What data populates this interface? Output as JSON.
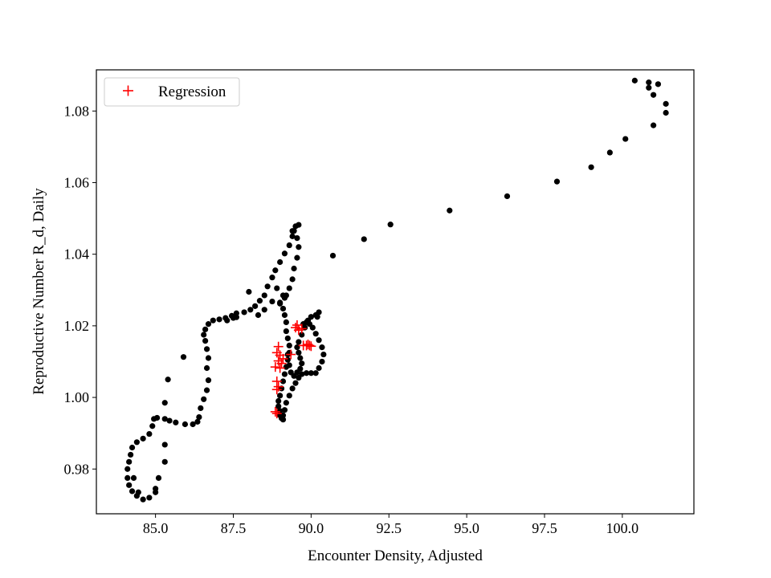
{
  "chart_data": {
    "type": "scatter",
    "xlabel": "Encounter Density, Adjusted",
    "ylabel": "Reproductive Number R_d, Daily",
    "xlim": [
      83.1,
      102.3
    ],
    "ylim": [
      0.9675,
      1.0915
    ],
    "xticks": [
      85.0,
      87.5,
      90.0,
      92.5,
      95.0,
      97.5,
      100.0
    ],
    "xtick_labels": [
      "85.0",
      "87.5",
      "90.0",
      "92.5",
      "95.0",
      "97.5",
      "100.0"
    ],
    "yticks": [
      0.98,
      1.0,
      1.02,
      1.04,
      1.06,
      1.08
    ],
    "ytick_labels": [
      "0.98",
      "1.00",
      "1.02",
      "1.04",
      "1.06",
      "1.08"
    ],
    "legend": {
      "placement": "upper-left",
      "entries": [
        "Regression"
      ]
    },
    "colors": {
      "points": "#000000",
      "regression": "#ff0000"
    },
    "series": [
      {
        "marker": "dot",
        "points": [
          [
            100.4,
            1.0885
          ],
          [
            100.85,
            1.088
          ],
          [
            101.15,
            1.0875
          ],
          [
            100.85,
            1.0865
          ],
          [
            101.0,
            1.0845
          ],
          [
            101.4,
            1.082
          ],
          [
            101.4,
            1.0795
          ],
          [
            101.0,
            1.076
          ],
          [
            100.1,
            1.0722
          ],
          [
            99.6,
            1.0684
          ],
          [
            99.0,
            1.0643
          ],
          [
            97.9,
            1.0603
          ],
          [
            96.3,
            1.0562
          ],
          [
            94.45,
            1.0522
          ],
          [
            92.55,
            1.0483
          ],
          [
            91.7,
            1.0442
          ],
          [
            90.7,
            1.0396
          ],
          [
            89.6,
            1.0482
          ],
          [
            89.5,
            1.0478
          ],
          [
            89.45,
            1.0465
          ],
          [
            89.4,
            1.045
          ],
          [
            89.3,
            1.0425
          ],
          [
            89.15,
            1.0402
          ],
          [
            89.0,
            1.0378
          ],
          [
            88.85,
            1.0355
          ],
          [
            88.75,
            1.0335
          ],
          [
            88.6,
            1.031
          ],
          [
            88.5,
            1.0285
          ],
          [
            88.35,
            1.027
          ],
          [
            88.2,
            1.0255
          ],
          [
            88.05,
            1.0245
          ],
          [
            87.85,
            1.0238
          ],
          [
            87.6,
            1.0235
          ],
          [
            87.45,
            1.0228
          ],
          [
            87.25,
            1.0222
          ],
          [
            87.05,
            1.0218
          ],
          [
            86.85,
            1.0215
          ],
          [
            86.7,
            1.0205
          ],
          [
            86.6,
            1.019
          ],
          [
            86.55,
            1.0175
          ],
          [
            86.6,
            1.0158
          ],
          [
            86.65,
            1.0135
          ],
          [
            86.7,
            1.011
          ],
          [
            86.65,
            1.0082
          ],
          [
            86.7,
            1.0048
          ],
          [
            86.65,
            1.002
          ],
          [
            86.55,
            0.9995
          ],
          [
            86.45,
            0.997
          ],
          [
            86.4,
            0.9945
          ],
          [
            86.35,
            0.9932
          ],
          [
            86.2,
            0.9925
          ],
          [
            85.95,
            0.9925
          ],
          [
            85.65,
            0.993
          ],
          [
            85.45,
            0.9935
          ],
          [
            85.3,
            0.994
          ],
          [
            85.3,
            0.9985
          ],
          [
            85.4,
            1.005
          ],
          [
            85.9,
            1.0113
          ],
          [
            85.3,
            0.9868
          ],
          [
            85.3,
            0.982
          ],
          [
            85.1,
            0.9775
          ],
          [
            85.0,
            0.9745
          ],
          [
            84.8,
            0.972
          ],
          [
            84.6,
            0.9715
          ],
          [
            84.4,
            0.9725
          ],
          [
            84.25,
            0.9738
          ],
          [
            84.15,
            0.9755
          ],
          [
            84.1,
            0.9775
          ],
          [
            84.1,
            0.98
          ],
          [
            84.15,
            0.982
          ],
          [
            84.2,
            0.984
          ],
          [
            84.25,
            0.986
          ],
          [
            84.4,
            0.9875
          ],
          [
            84.6,
            0.9885
          ],
          [
            84.8,
            0.9898
          ],
          [
            84.9,
            0.992
          ],
          [
            84.95,
            0.994
          ],
          [
            85.05,
            0.9943
          ],
          [
            84.3,
            0.9775
          ],
          [
            84.45,
            0.9735
          ],
          [
            85.0,
            0.9735
          ],
          [
            87.3,
            1.0215
          ],
          [
            87.5,
            1.0222
          ],
          [
            87.6,
            1.0224
          ],
          [
            88.0,
            1.0295
          ],
          [
            88.3,
            1.023
          ],
          [
            88.5,
            1.0245
          ],
          [
            88.75,
            1.0268
          ],
          [
            89.0,
            1.0262
          ],
          [
            89.1,
            1.0248
          ],
          [
            89.15,
            1.023
          ],
          [
            89.2,
            1.021
          ],
          [
            89.2,
            1.0185
          ],
          [
            89.25,
            1.0165
          ],
          [
            89.3,
            1.0145
          ],
          [
            89.4,
            1.0465
          ],
          [
            89.55,
            1.0445
          ],
          [
            89.6,
            1.042
          ],
          [
            89.55,
            1.039
          ],
          [
            89.45,
            1.036
          ],
          [
            89.4,
            1.033
          ],
          [
            89.3,
            1.0305
          ],
          [
            89.2,
            1.0285
          ],
          [
            89.1,
            1.0285
          ],
          [
            89.0,
            1.0265
          ],
          [
            89.15,
            1.0278
          ],
          [
            88.9,
            1.0305
          ],
          [
            89.3,
            1.0125
          ],
          [
            89.25,
            1.0105
          ],
          [
            89.2,
            1.0085
          ],
          [
            89.15,
            1.0065
          ],
          [
            89.1,
            1.0045
          ],
          [
            89.05,
            1.0025
          ],
          [
            89.0,
            1.0005
          ],
          [
            88.95,
            0.999
          ],
          [
            88.95,
            0.9975
          ],
          [
            89.0,
            0.9962
          ],
          [
            89.0,
            0.995
          ],
          [
            89.05,
            0.9942
          ],
          [
            89.1,
            0.9938
          ],
          [
            89.1,
            0.995
          ],
          [
            89.15,
            0.9965
          ],
          [
            89.2,
            0.9985
          ],
          [
            89.3,
            1.0005
          ],
          [
            89.4,
            1.0025
          ],
          [
            89.5,
            1.004
          ],
          [
            89.6,
            1.0055
          ],
          [
            89.7,
            1.0065
          ],
          [
            89.85,
            1.0068
          ],
          [
            90.0,
            1.0068
          ],
          [
            90.15,
            1.0068
          ],
          [
            90.25,
            1.0082
          ],
          [
            90.35,
            1.01
          ],
          [
            90.4,
            1.012
          ],
          [
            90.35,
            1.014
          ],
          [
            90.25,
            1.016
          ],
          [
            90.15,
            1.0178
          ],
          [
            90.05,
            1.0195
          ],
          [
            89.95,
            1.0205
          ],
          [
            89.85,
            1.021
          ],
          [
            89.75,
            1.0205
          ],
          [
            89.8,
            1.0195
          ],
          [
            89.9,
            1.0215
          ],
          [
            90.0,
            1.0225
          ],
          [
            90.15,
            1.023
          ],
          [
            90.25,
            1.0238
          ],
          [
            90.2,
            1.0225
          ],
          [
            89.7,
            1.0175
          ],
          [
            89.6,
            1.0155
          ],
          [
            89.55,
            1.014
          ],
          [
            89.6,
            1.0125
          ],
          [
            89.65,
            1.011
          ],
          [
            89.7,
            1.0095
          ],
          [
            89.65,
            1.008
          ],
          [
            89.55,
            1.007
          ],
          [
            89.45,
            1.006
          ],
          [
            89.35,
            1.007
          ],
          [
            89.3,
            1.009
          ],
          [
            89.25,
            1.012
          ]
        ]
      },
      {
        "name": "Regression",
        "marker": "plus",
        "points": [
          [
            89.5,
            1.0195
          ],
          [
            89.55,
            1.0202
          ],
          [
            89.7,
            1.0192
          ],
          [
            89.6,
            1.0188
          ],
          [
            88.95,
            1.0142
          ],
          [
            88.9,
            1.0125
          ],
          [
            89.0,
            1.0118
          ],
          [
            89.1,
            1.0108
          ],
          [
            88.95,
            1.0102
          ],
          [
            89.05,
            1.0095
          ],
          [
            88.85,
            1.0085
          ],
          [
            89.0,
            1.0082
          ],
          [
            88.9,
            1.0045
          ],
          [
            88.95,
            1.003
          ],
          [
            88.9,
            1.0022
          ],
          [
            89.75,
            1.0145
          ],
          [
            89.85,
            1.0145
          ],
          [
            89.95,
            1.0145
          ],
          [
            90.0,
            1.0143
          ],
          [
            89.9,
            1.0148
          ],
          [
            88.85,
            0.996
          ],
          [
            88.9,
            0.9955
          ],
          [
            89.35,
            1.012
          ]
        ]
      }
    ]
  }
}
